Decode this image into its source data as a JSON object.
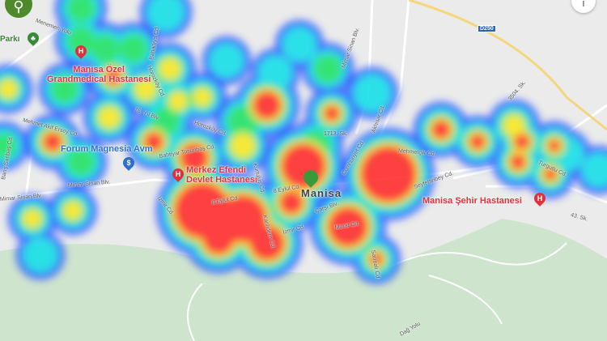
{
  "map": {
    "city_label": "Manisa",
    "highway_shield": "D250",
    "colors": {
      "park": "#cfe4cd",
      "road": "#ffffff",
      "highway": "#f4d77a",
      "hospital": "#e0303a",
      "heat_low": "#2f5cff",
      "heat_mid": "#19e07a",
      "heat_high": "#ff2f2f"
    },
    "pois": [
      {
        "name": "Manisa Özel\nGrandmedical Hastanesi",
        "icon": "hospital-icon"
      },
      {
        "name": "Forum Magnesia Avm",
        "icon": "shopping-icon"
      },
      {
        "name": "Merkez Efendi\nDevlet Hastanesi",
        "icon": "hospital-icon"
      },
      {
        "name": "Manisa Şehir Hastanesi",
        "icon": "hospital-icon"
      },
      {
        "name": "Parkı",
        "icon": "park-icon"
      }
    ],
    "streets": [
      "Bahadıya Cd.",
      "Horozköy Cd.",
      "75. Yıl Blv.",
      "Horozköy Cd.",
      "Mehmet Akif Ersoy Cd.",
      "Mimar Sinan Blv.",
      "İzmir Cd.",
      "Bahtiyar Tosunbaş Cd.",
      "Mimar Sinan Blv.",
      "Mimar Sinan Blv.",
      "Akhisar Cd.",
      "1713. Sk.",
      "Cumhuriyet Cd.",
      "Mehmetçik Cd.",
      "Seyfettinbey Cd.",
      "3504. Sk.",
      "Turgutlu Cd.",
      "43. Sk.",
      "8 Eylül Cd.",
      "8 Eylül Cd.",
      "Kurtuluş Cd.",
      "Kanlıdere Cd.",
      "İzmir Cd.",
      "Çarşı Blv.",
      "Murat Cd.",
      "Sarıbalı Cd.",
      "Dağ Yolu",
      "Barış Saribaş Cd.",
      "Menemen Yolu"
    ]
  },
  "controls": {
    "search_icon": "⚲",
    "info_icon": "i"
  }
}
